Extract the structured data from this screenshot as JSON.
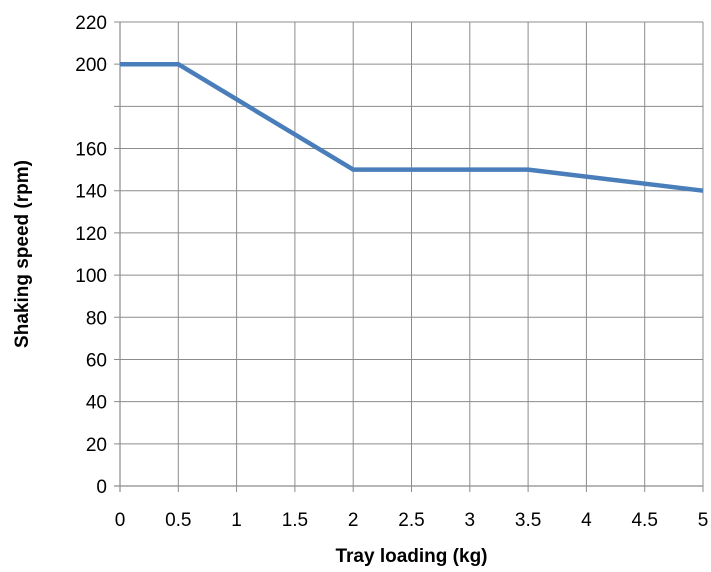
{
  "chart_data": {
    "type": "line",
    "title": "",
    "xlabel": "Tray loading (kg)",
    "ylabel": "Shaking speed (rpm)",
    "xlim": [
      0,
      5
    ],
    "ylim": [
      0,
      220
    ],
    "x_ticks": [
      "0",
      "0.5",
      "1",
      "1.5",
      "2",
      "2.5",
      "3",
      "3.5",
      "4",
      "4.5",
      "5"
    ],
    "y_ticks": [
      "0",
      "20",
      "40",
      "60",
      "80",
      "100",
      "120",
      "140",
      "160",
      "200",
      "220"
    ],
    "y_tick_values": [
      0,
      20,
      40,
      60,
      80,
      100,
      120,
      140,
      160,
      200,
      220
    ],
    "x_tick_values": [
      0,
      0.5,
      1,
      1.5,
      2,
      2.5,
      3,
      3.5,
      4,
      4.5,
      5
    ],
    "grid": true,
    "legend": "none",
    "series": [
      {
        "x": [
          0,
          0.5,
          2,
          3.5,
          5
        ],
        "values": [
          200,
          200,
          150,
          150,
          140
        ],
        "color": "#4a7ebb"
      }
    ]
  }
}
